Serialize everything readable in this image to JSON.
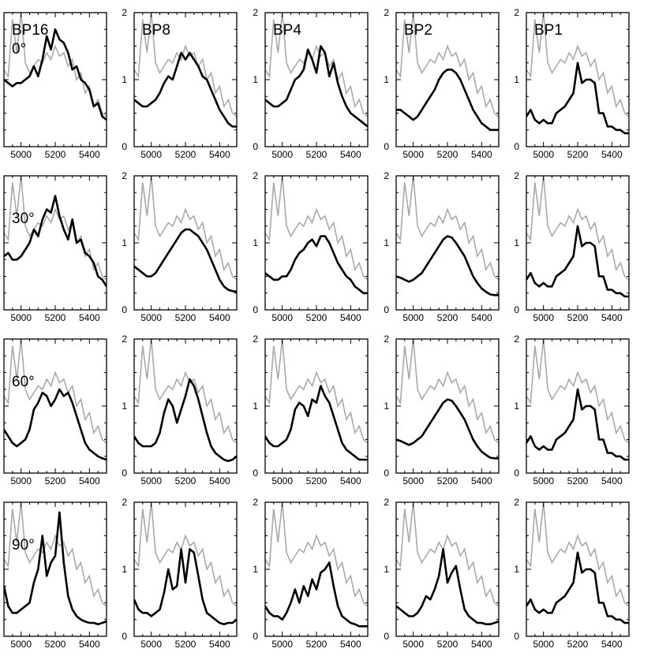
{
  "columns": [
    "BP16",
    "BP8",
    "BP4",
    "BP2",
    "BP1"
  ],
  "rows": [
    "0°",
    "30°",
    "60°",
    "90°"
  ],
  "colors": {
    "reference": "#a9a9a9",
    "model": "#000000",
    "axis": "#000000"
  },
  "chart_data": {
    "type": "line",
    "layout": "grid 4 rows x 5 columns",
    "xlim": [
      4900,
      5500
    ],
    "ylim": [
      0,
      2
    ],
    "xticks": [
      5000,
      5200,
      5400
    ],
    "yticks": [
      0,
      1,
      2
    ],
    "x": [
      4900,
      4925,
      4950,
      4975,
      5000,
      5025,
      5050,
      5075,
      5100,
      5125,
      5150,
      5175,
      5200,
      5225,
      5250,
      5275,
      5300,
      5325,
      5350,
      5375,
      5400,
      5425,
      5450,
      5475,
      5500
    ],
    "series": [
      {
        "y": [
          1.15,
          1.05,
          1.9,
          1.4,
          2.0,
          1.25,
          1.1,
          1.2,
          1.3,
          1.25,
          1.4,
          1.3,
          1.5,
          1.35,
          1.4,
          1.2,
          1.3,
          1.0,
          1.1,
          0.8,
          0.9,
          0.6,
          0.7,
          0.5,
          0.45
        ]
      }
    ],
    "panels": [
      {
        "row": "0°",
        "column": "BP16",
        "y": [
          1.0,
          0.95,
          0.9,
          0.95,
          0.95,
          1.0,
          1.05,
          1.2,
          1.05,
          1.3,
          1.65,
          1.45,
          1.75,
          1.6,
          1.55,
          1.4,
          1.15,
          1.2,
          1.0,
          0.95,
          0.85,
          0.6,
          0.65,
          0.45,
          0.4
        ]
      },
      {
        "row": "0°",
        "column": "BP8",
        "y": [
          0.7,
          0.65,
          0.6,
          0.6,
          0.65,
          0.7,
          0.8,
          0.95,
          1.05,
          1.0,
          1.2,
          1.4,
          1.3,
          1.4,
          1.3,
          1.2,
          1.05,
          1.0,
          0.85,
          0.7,
          0.55,
          0.45,
          0.35,
          0.3,
          0.3
        ]
      },
      {
        "row": "0°",
        "column": "BP4",
        "y": [
          0.7,
          0.65,
          0.6,
          0.6,
          0.65,
          0.7,
          0.85,
          1.0,
          1.05,
          1.15,
          1.45,
          1.3,
          1.1,
          1.5,
          1.4,
          1.05,
          1.25,
          0.95,
          0.75,
          0.6,
          0.5,
          0.45,
          0.4,
          0.35,
          0.3
        ]
      },
      {
        "row": "0°",
        "column": "BP2",
        "y": [
          0.55,
          0.55,
          0.5,
          0.45,
          0.4,
          0.45,
          0.55,
          0.65,
          0.75,
          0.85,
          1.0,
          1.1,
          1.15,
          1.15,
          1.1,
          1.0,
          0.85,
          0.7,
          0.55,
          0.45,
          0.35,
          0.3,
          0.25,
          0.25,
          0.25
        ]
      },
      {
        "row": "0°",
        "column": "BP1",
        "y": [
          0.45,
          0.55,
          0.4,
          0.35,
          0.4,
          0.35,
          0.35,
          0.5,
          0.55,
          0.6,
          0.7,
          0.8,
          1.25,
          0.95,
          1.0,
          1.0,
          0.95,
          0.5,
          0.5,
          0.3,
          0.3,
          0.25,
          0.25,
          0.2,
          0.2
        ]
      },
      {
        "row": "30°",
        "column": "BP16",
        "y": [
          0.8,
          0.85,
          0.75,
          0.75,
          0.8,
          0.9,
          1.0,
          1.2,
          1.1,
          1.35,
          1.5,
          1.45,
          1.7,
          1.4,
          1.2,
          1.05,
          1.35,
          1.0,
          1.05,
          0.85,
          0.8,
          0.7,
          0.5,
          0.45,
          0.35
        ]
      },
      {
        "row": "30°",
        "column": "BP8",
        "y": [
          0.65,
          0.6,
          0.55,
          0.5,
          0.5,
          0.55,
          0.65,
          0.75,
          0.85,
          0.95,
          1.05,
          1.15,
          1.2,
          1.2,
          1.15,
          1.1,
          1.0,
          0.9,
          0.75,
          0.6,
          0.45,
          0.35,
          0.3,
          0.28,
          0.27
        ]
      },
      {
        "row": "30°",
        "column": "BP4",
        "y": [
          0.55,
          0.5,
          0.45,
          0.45,
          0.5,
          0.5,
          0.6,
          0.75,
          0.85,
          0.9,
          1.0,
          1.05,
          0.95,
          1.1,
          1.1,
          1.0,
          0.85,
          0.7,
          0.6,
          0.5,
          0.45,
          0.35,
          0.3,
          0.25,
          0.25
        ]
      },
      {
        "row": "30°",
        "column": "BP2",
        "y": [
          0.5,
          0.48,
          0.45,
          0.42,
          0.45,
          0.5,
          0.55,
          0.65,
          0.75,
          0.85,
          0.95,
          1.05,
          1.1,
          1.08,
          1.0,
          0.9,
          0.8,
          0.65,
          0.5,
          0.4,
          0.32,
          0.27,
          0.23,
          0.22,
          0.22
        ]
      },
      {
        "row": "30°",
        "column": "BP1",
        "y": [
          0.45,
          0.55,
          0.4,
          0.35,
          0.4,
          0.35,
          0.35,
          0.5,
          0.55,
          0.6,
          0.7,
          0.8,
          1.25,
          0.95,
          1.0,
          1.0,
          0.95,
          0.5,
          0.5,
          0.3,
          0.3,
          0.25,
          0.25,
          0.2,
          0.2
        ]
      },
      {
        "row": "60°",
        "column": "BP16",
        "y": [
          0.65,
          0.55,
          0.45,
          0.4,
          0.45,
          0.5,
          0.65,
          0.95,
          1.05,
          1.2,
          1.15,
          1.0,
          1.1,
          1.25,
          1.15,
          1.2,
          1.05,
          0.85,
          0.65,
          0.45,
          0.35,
          0.3,
          0.25,
          0.22,
          0.2
        ]
      },
      {
        "row": "60°",
        "column": "BP8",
        "y": [
          0.55,
          0.45,
          0.4,
          0.4,
          0.4,
          0.45,
          0.6,
          0.9,
          1.1,
          1.0,
          0.75,
          0.95,
          1.15,
          1.4,
          1.3,
          1.1,
          0.85,
          0.6,
          0.4,
          0.3,
          0.25,
          0.2,
          0.18,
          0.2,
          0.25
        ]
      },
      {
        "row": "60°",
        "column": "BP4",
        "y": [
          0.55,
          0.45,
          0.4,
          0.4,
          0.45,
          0.5,
          0.65,
          0.95,
          1.05,
          1.0,
          0.85,
          1.1,
          1.05,
          1.3,
          1.15,
          1.05,
          0.85,
          0.65,
          0.45,
          0.35,
          0.3,
          0.25,
          0.2,
          0.2,
          0.2
        ]
      },
      {
        "row": "60°",
        "column": "BP2",
        "y": [
          0.5,
          0.48,
          0.45,
          0.42,
          0.45,
          0.5,
          0.55,
          0.65,
          0.75,
          0.85,
          0.95,
          1.05,
          1.1,
          1.08,
          1.0,
          0.9,
          0.8,
          0.65,
          0.5,
          0.4,
          0.32,
          0.27,
          0.23,
          0.22,
          0.22
        ]
      },
      {
        "row": "60°",
        "column": "BP1",
        "y": [
          0.45,
          0.55,
          0.4,
          0.35,
          0.4,
          0.35,
          0.35,
          0.5,
          0.55,
          0.6,
          0.7,
          0.8,
          1.25,
          0.95,
          1.0,
          1.0,
          0.95,
          0.5,
          0.5,
          0.3,
          0.3,
          0.25,
          0.25,
          0.2,
          0.2
        ]
      },
      {
        "row": "90°",
        "column": "BP16",
        "y": [
          0.75,
          0.45,
          0.35,
          0.35,
          0.4,
          0.45,
          0.5,
          0.8,
          1.0,
          1.5,
          0.9,
          1.1,
          1.2,
          1.85,
          1.1,
          0.6,
          0.4,
          0.3,
          0.25,
          0.22,
          0.2,
          0.2,
          0.18,
          0.2,
          0.22
        ]
      },
      {
        "row": "90°",
        "column": "BP8",
        "y": [
          0.55,
          0.4,
          0.35,
          0.35,
          0.3,
          0.35,
          0.4,
          0.65,
          1.0,
          0.7,
          0.75,
          1.3,
          0.8,
          1.3,
          1.25,
          0.9,
          0.55,
          0.35,
          0.3,
          0.25,
          0.2,
          0.18,
          0.2,
          0.2,
          0.25
        ]
      },
      {
        "row": "90°",
        "column": "BP4",
        "y": [
          0.45,
          0.35,
          0.3,
          0.3,
          0.25,
          0.35,
          0.5,
          0.7,
          0.5,
          0.75,
          0.6,
          0.85,
          0.7,
          0.95,
          1.0,
          1.1,
          0.75,
          0.45,
          0.3,
          0.25,
          0.2,
          0.18,
          0.15,
          0.15,
          0.15
        ]
      },
      {
        "row": "90°",
        "column": "BP2",
        "y": [
          0.45,
          0.4,
          0.35,
          0.3,
          0.3,
          0.35,
          0.45,
          0.6,
          0.55,
          0.7,
          0.9,
          1.3,
          0.8,
          0.95,
          1.05,
          0.7,
          0.4,
          0.3,
          0.25,
          0.2,
          0.2,
          0.18,
          0.18,
          0.2,
          0.22
        ]
      },
      {
        "row": "90°",
        "column": "BP1",
        "y": [
          0.45,
          0.55,
          0.4,
          0.35,
          0.4,
          0.35,
          0.35,
          0.5,
          0.55,
          0.6,
          0.7,
          0.8,
          1.25,
          0.95,
          1.0,
          1.0,
          0.95,
          0.5,
          0.5,
          0.3,
          0.3,
          0.25,
          0.25,
          0.2,
          0.2
        ]
      }
    ]
  }
}
